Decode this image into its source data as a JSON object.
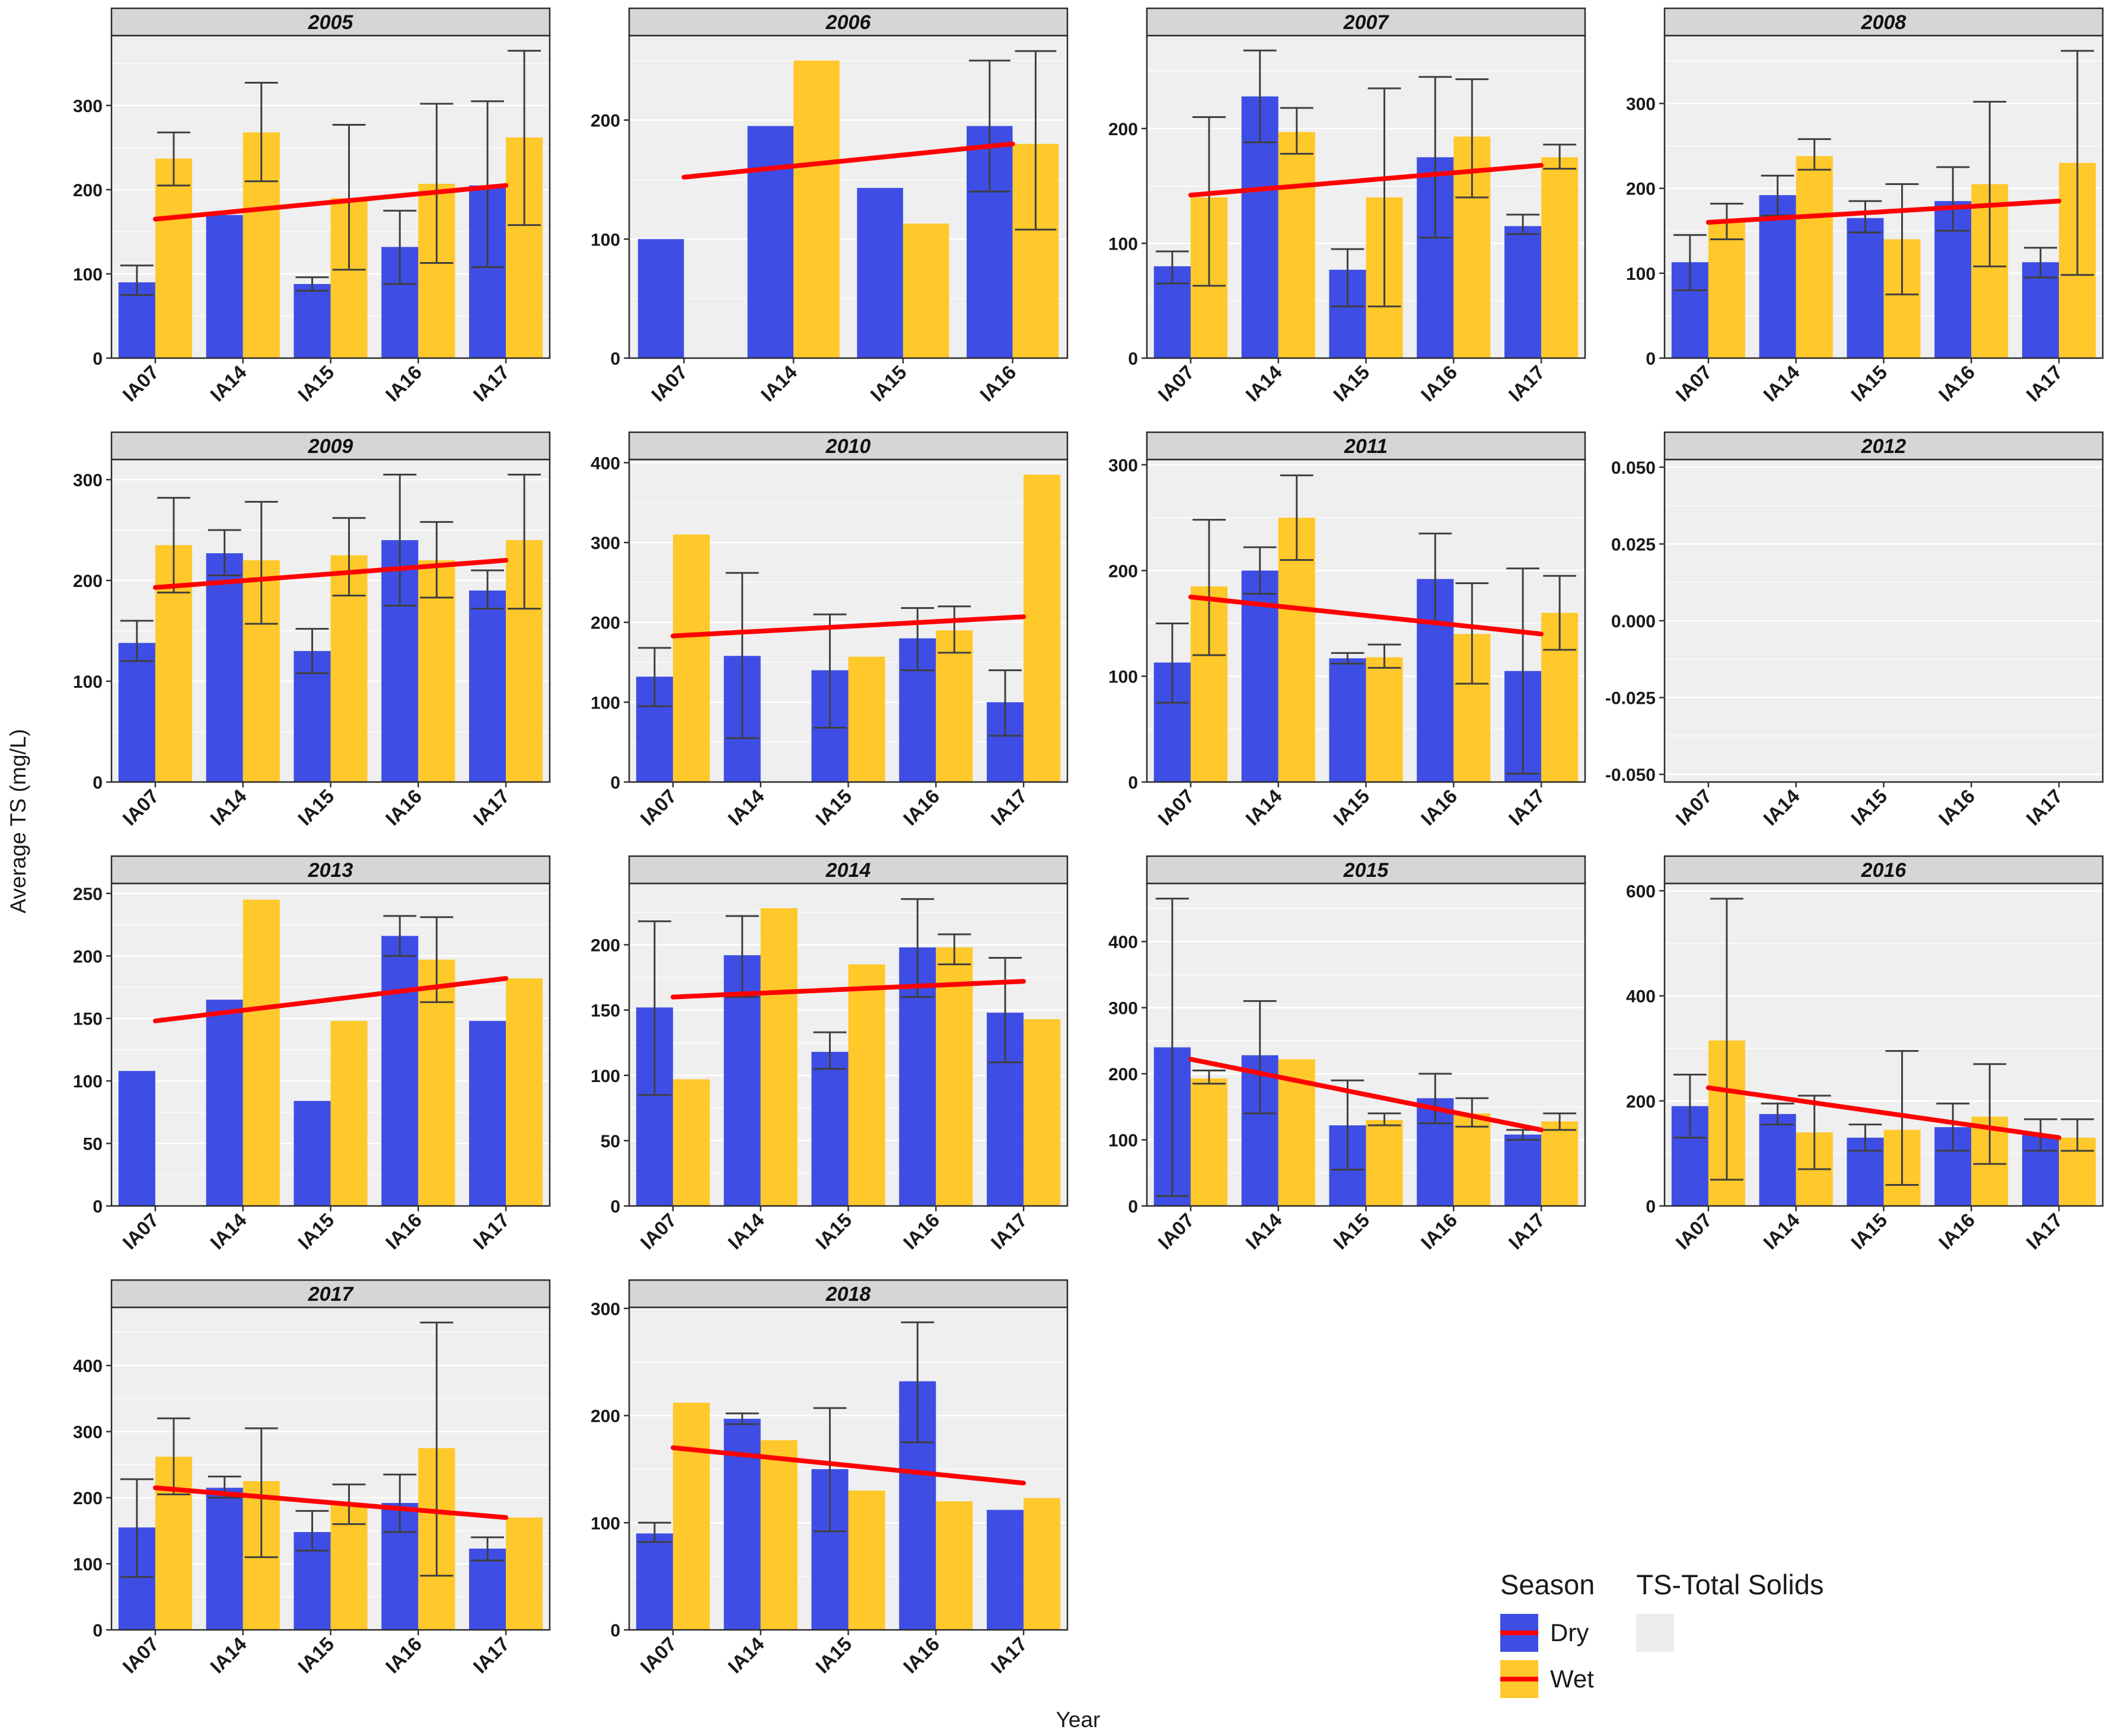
{
  "chart_data": {
    "type": "bar",
    "title": "",
    "xlabel": "Year",
    "ylabel": "Average TS (mg/L)",
    "legend": {
      "season_title": "Season",
      "ts_title": "TS-Total Solids",
      "entries": [
        {
          "label": "Dry"
        },
        {
          "label": "Wet"
        }
      ]
    },
    "colors": {
      "dry": "#3E4EE4",
      "wet": "#FFC82B",
      "trend": "#FF0000",
      "errorbar": "#3f3f3f",
      "panel_bg": "#EFEFEF",
      "strip_bg": "#D6D6D6",
      "ts_key_bg": "#ECECEC"
    },
    "series_names": [
      "Dry",
      "Wet"
    ],
    "panels": [
      {
        "year": "2005",
        "categories": [
          "IA07",
          "IA14",
          "IA15",
          "IA16",
          "IA17"
        ],
        "ylim": [
          0,
          383
        ],
        "yticks": [
          0,
          100,
          200,
          300
        ],
        "dry": [
          90,
          170,
          88,
          132,
          205
        ],
        "wet": [
          237,
          268,
          190,
          207,
          262
        ],
        "dry_err": [
          [
            75,
            110
          ],
          null,
          [
            80,
            96
          ],
          [
            88,
            175
          ],
          [
            108,
            305
          ]
        ],
        "wet_err": [
          [
            205,
            268
          ],
          [
            210,
            327
          ],
          [
            105,
            277
          ],
          [
            113,
            302
          ],
          [
            158,
            365
          ]
        ],
        "trend": [
          165,
          205
        ]
      },
      {
        "year": "2006",
        "categories": [
          "IA07",
          "IA14",
          "IA15",
          "IA16"
        ],
        "ylim": [
          0,
          271
        ],
        "yticks": [
          0,
          100,
          200
        ],
        "dry": [
          100,
          195,
          143,
          195
        ],
        "wet": [
          null,
          250,
          113,
          180
        ],
        "dry_err": [
          null,
          null,
          null,
          [
            140,
            250
          ]
        ],
        "wet_err": [
          null,
          null,
          null,
          [
            108,
            258
          ]
        ],
        "trend": [
          152,
          180
        ]
      },
      {
        "year": "2007",
        "categories": [
          "IA07",
          "IA14",
          "IA15",
          "IA16",
          "IA17"
        ],
        "ylim": [
          0,
          281
        ],
        "yticks": [
          0,
          100,
          200
        ],
        "dry": [
          80,
          228,
          77,
          175,
          115
        ],
        "wet": [
          140,
          197,
          140,
          193,
          175
        ],
        "dry_err": [
          [
            65,
            93
          ],
          [
            188,
            268
          ],
          [
            45,
            95
          ],
          [
            105,
            245
          ],
          [
            108,
            125
          ]
        ],
        "wet_err": [
          [
            63,
            210
          ],
          [
            178,
            218
          ],
          [
            45,
            235
          ],
          [
            140,
            243
          ],
          [
            165,
            186
          ]
        ],
        "trend": [
          142,
          168
        ]
      },
      {
        "year": "2008",
        "categories": [
          "IA07",
          "IA14",
          "IA15",
          "IA16",
          "IA17"
        ],
        "ylim": [
          0,
          380
        ],
        "yticks": [
          0,
          100,
          200,
          300
        ],
        "dry": [
          113,
          192,
          165,
          185,
          113
        ],
        "wet": [
          160,
          238,
          140,
          205,
          230
        ],
        "dry_err": [
          [
            80,
            145
          ],
          [
            168,
            215
          ],
          [
            148,
            185
          ],
          [
            150,
            225
          ],
          [
            95,
            130
          ]
        ],
        "wet_err": [
          [
            140,
            182
          ],
          [
            222,
            258
          ],
          [
            75,
            205
          ],
          [
            108,
            302
          ],
          [
            98,
            362
          ]
        ],
        "trend": [
          160,
          185
        ]
      },
      {
        "year": "2009",
        "categories": [
          "IA07",
          "IA14",
          "IA15",
          "IA16",
          "IA17"
        ],
        "ylim": [
          0,
          320
        ],
        "yticks": [
          0,
          100,
          200,
          300
        ],
        "dry": [
          138,
          227,
          130,
          240,
          190
        ],
        "wet": [
          235,
          220,
          225,
          220,
          240
        ],
        "dry_err": [
          [
            120,
            160
          ],
          [
            205,
            250
          ],
          [
            108,
            152
          ],
          [
            175,
            305
          ],
          [
            172,
            210
          ]
        ],
        "wet_err": [
          [
            188,
            282
          ],
          [
            157,
            278
          ],
          [
            185,
            262
          ],
          [
            183,
            258
          ],
          [
            172,
            305
          ]
        ],
        "trend": [
          193,
          220
        ]
      },
      {
        "year": "2010",
        "categories": [
          "IA07",
          "IA14",
          "IA15",
          "IA16",
          "IA17"
        ],
        "ylim": [
          0,
          404
        ],
        "yticks": [
          0,
          100,
          200,
          300,
          400
        ],
        "dry": [
          132,
          158,
          140,
          180,
          100
        ],
        "wet": [
          310,
          null,
          157,
          190,
          385
        ],
        "dry_err": [
          [
            95,
            168
          ],
          [
            55,
            262
          ],
          [
            68,
            210
          ],
          [
            140,
            218
          ],
          [
            58,
            140
          ]
        ],
        "wet_err": [
          null,
          null,
          null,
          [
            162,
            220
          ],
          null
        ],
        "trend": [
          183,
          207
        ]
      },
      {
        "year": "2011",
        "categories": [
          "IA07",
          "IA14",
          "IA15",
          "IA16",
          "IA17"
        ],
        "ylim": [
          0,
          305
        ],
        "yticks": [
          0,
          100,
          200,
          300
        ],
        "dry": [
          113,
          200,
          117,
          192,
          105
        ],
        "wet": [
          185,
          250,
          118,
          140,
          160
        ],
        "dry_err": [
          [
            75,
            150
          ],
          [
            178,
            222
          ],
          [
            112,
            122
          ],
          [
            150,
            235
          ],
          [
            8,
            202
          ]
        ],
        "wet_err": [
          [
            120,
            248
          ],
          [
            210,
            290
          ],
          [
            108,
            130
          ],
          [
            93,
            188
          ],
          [
            125,
            195
          ]
        ],
        "trend": [
          175,
          140
        ]
      },
      {
        "year": "2012",
        "categories": [
          "IA07",
          "IA14",
          "IA15",
          "IA16",
          "IA17"
        ],
        "ylim": [
          -0.0525,
          0.0525
        ],
        "yticks": [
          -0.05,
          -0.025,
          0,
          0.025,
          0.05
        ],
        "ylabels": [
          "-0.050",
          "-0.025",
          "0.000",
          "0.025",
          "0.050"
        ],
        "dry": [
          null,
          null,
          null,
          null,
          null
        ],
        "wet": [
          null,
          null,
          null,
          null,
          null
        ],
        "dry_err": [
          null,
          null,
          null,
          null,
          null
        ],
        "wet_err": [
          null,
          null,
          null,
          null,
          null
        ],
        "trend": null
      },
      {
        "year": "2013",
        "categories": [
          "IA07",
          "IA14",
          "IA15",
          "IA16",
          "IA17"
        ],
        "ylim": [
          0,
          258
        ],
        "yticks": [
          0,
          50,
          100,
          150,
          200,
          250
        ],
        "dry": [
          108,
          165,
          84,
          216,
          148
        ],
        "wet": [
          null,
          245,
          148,
          197,
          182
        ],
        "dry_err": [
          null,
          null,
          null,
          [
            200,
            232
          ],
          null
        ],
        "wet_err": [
          null,
          null,
          null,
          [
            163,
            231
          ],
          null
        ],
        "trend": [
          148,
          182
        ]
      },
      {
        "year": "2014",
        "categories": [
          "IA07",
          "IA14",
          "IA15",
          "IA16",
          "IA17"
        ],
        "ylim": [
          0,
          247
        ],
        "yticks": [
          0,
          50,
          100,
          150,
          200
        ],
        "dry": [
          152,
          192,
          118,
          198,
          148
        ],
        "wet": [
          97,
          228,
          185,
          198,
          143
        ],
        "dry_err": [
          [
            85,
            218
          ],
          [
            160,
            222
          ],
          [
            105,
            133
          ],
          [
            160,
            235
          ],
          [
            110,
            190
          ]
        ],
        "wet_err": [
          null,
          null,
          null,
          [
            185,
            208
          ],
          null
        ],
        "trend": [
          160,
          172
        ]
      },
      {
        "year": "2015",
        "categories": [
          "IA07",
          "IA14",
          "IA15",
          "IA16",
          "IA17"
        ],
        "ylim": [
          0,
          488
        ],
        "yticks": [
          0,
          100,
          200,
          300,
          400
        ],
        "dry": [
          240,
          228,
          122,
          163,
          108
        ],
        "wet": [
          193,
          222,
          130,
          140,
          128
        ],
        "dry_err": [
          [
            15,
            465
          ],
          [
            140,
            310
          ],
          [
            55,
            190
          ],
          [
            125,
            200
          ],
          [
            100,
            115
          ]
        ],
        "wet_err": [
          [
            185,
            205
          ],
          null,
          [
            122,
            140
          ],
          [
            120,
            163
          ],
          [
            115,
            140
          ]
        ],
        "trend": [
          222,
          115
        ]
      },
      {
        "year": "2016",
        "categories": [
          "IA07",
          "IA14",
          "IA15",
          "IA16",
          "IA17"
        ],
        "ylim": [
          0,
          614
        ],
        "yticks": [
          0,
          200,
          400,
          600
        ],
        "dry": [
          190,
          175,
          130,
          150,
          135
        ],
        "wet": [
          315,
          140,
          145,
          170,
          130
        ],
        "dry_err": [
          [
            130,
            250
          ],
          [
            155,
            195
          ],
          [
            105,
            155
          ],
          [
            105,
            195
          ],
          [
            105,
            165
          ]
        ],
        "wet_err": [
          [
            50,
            585
          ],
          [
            70,
            210
          ],
          [
            40,
            295
          ],
          [
            80,
            270
          ],
          [
            105,
            165
          ]
        ],
        "trend": [
          225,
          130
        ]
      },
      {
        "year": "2017",
        "categories": [
          "IA07",
          "IA14",
          "IA15",
          "IA16",
          "IA17"
        ],
        "ylim": [
          0,
          488
        ],
        "yticks": [
          0,
          100,
          200,
          300,
          400
        ],
        "dry": [
          155,
          215,
          148,
          192,
          123
        ],
        "wet": [
          262,
          225,
          190,
          275,
          170
        ],
        "dry_err": [
          [
            80,
            228
          ],
          [
            200,
            232
          ],
          [
            120,
            180
          ],
          [
            148,
            235
          ],
          [
            105,
            140
          ]
        ],
        "wet_err": [
          [
            205,
            320
          ],
          [
            110,
            305
          ],
          [
            160,
            220
          ],
          [
            82,
            465
          ],
          null
        ],
        "trend": [
          215,
          170
        ]
      },
      {
        "year": "2018",
        "categories": [
          "IA07",
          "IA14",
          "IA15",
          "IA16",
          "IA17"
        ],
        "ylim": [
          0,
          301
        ],
        "yticks": [
          0,
          100,
          200,
          300
        ],
        "dry": [
          90,
          197,
          150,
          232,
          112
        ],
        "wet": [
          212,
          177,
          130,
          120,
          123
        ],
        "dry_err": [
          [
            82,
            100
          ],
          [
            192,
            202
          ],
          [
            92,
            207
          ],
          [
            175,
            287
          ],
          null
        ],
        "wet_err": [
          null,
          null,
          null,
          null,
          null
        ],
        "trend": [
          170,
          137
        ]
      }
    ]
  }
}
